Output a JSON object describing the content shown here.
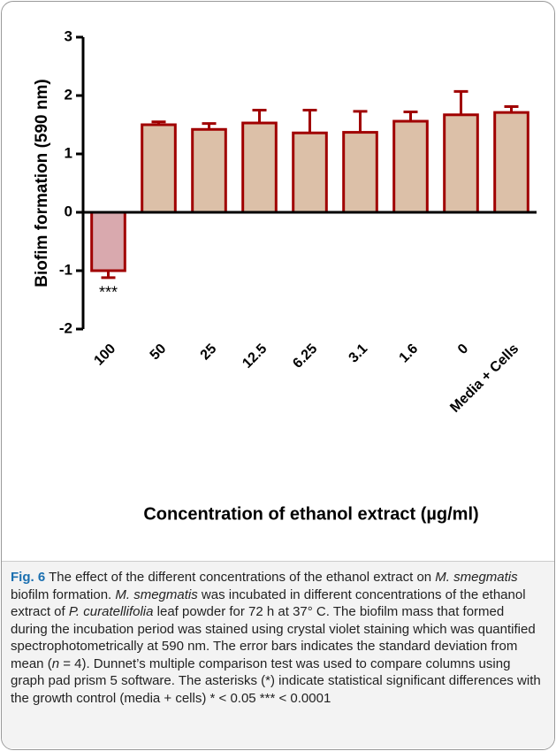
{
  "chart_data": {
    "type": "bar",
    "x_label": "Concentration of ethanol extract (µg/ml)",
    "y_label": "Biofim formation (590 nm)",
    "categories": [
      "100",
      "50",
      "25",
      "12.5",
      "6.25",
      "3.1",
      "1.6",
      "0",
      "Media + Cells"
    ],
    "values": [
      -1.0,
      1.5,
      1.42,
      1.53,
      1.36,
      1.37,
      1.56,
      1.67,
      1.71
    ],
    "errors": [
      0.12,
      0.05,
      0.1,
      0.22,
      0.39,
      0.36,
      0.16,
      0.4,
      0.1
    ],
    "bar_colors": [
      "#d9a9ae",
      "#dcc0a8",
      "#dcc0a8",
      "#dcc0a8",
      "#dcc0a8",
      "#dcc0a8",
      "#dcc0a8",
      "#dcc0a8",
      "#dcc0a8"
    ],
    "edge_color": "#a00000",
    "annotation": "***",
    "ylim": [
      -2,
      3
    ],
    "yticks": [
      -2,
      -1,
      0,
      1,
      2,
      3
    ]
  },
  "caption": {
    "label": "Fig. 6",
    "segments": [
      {
        "text": " The effect of the different concentrations of the ethanol extract on ",
        "italic": false
      },
      {
        "text": "M. smegmatis",
        "italic": true
      },
      {
        "text": " biofilm formation. ",
        "italic": false
      },
      {
        "text": "M. smegmatis",
        "italic": true
      },
      {
        "text": " was incubated in different concentrations of the ethanol extract of ",
        "italic": false
      },
      {
        "text": "P. curatellifolia",
        "italic": true
      },
      {
        "text": " leaf powder for 72 h at 37° C. The biofilm mass that formed during the incubation period was stained using crystal violet staining which was quantified spectrophotometrically at 590 nm. The error bars indicates the standard deviation from mean (",
        "italic": false
      },
      {
        "text": "n",
        "italic": true
      },
      {
        "text": " = 4). Dunnet’s multiple comparison test was used to compare columns using graph pad prism 5 software. The asterisks (*) indicate statistical significant differences with the growth control (media + cells) * < 0.05 *** < 0.0001",
        "italic": false
      }
    ]
  }
}
